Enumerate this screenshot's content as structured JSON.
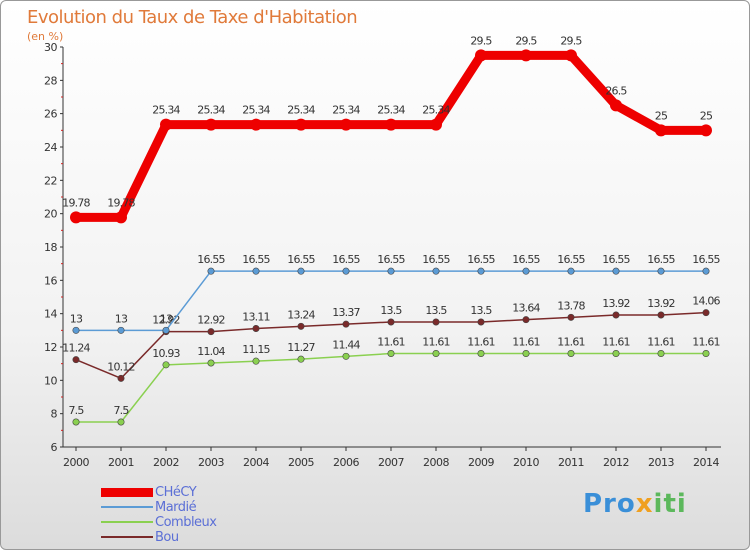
{
  "title": "Evolution du Taux de Taxe d'Habitation",
  "unit": "(en %)",
  "logo": {
    "text": "Proxiti"
  },
  "chart_data": {
    "type": "line",
    "title": "Evolution du Taux de Taxe d'Habitation",
    "ylabel": "(en %)",
    "xlabel": "",
    "ylim": [
      6,
      30
    ],
    "yticks": [
      6,
      8,
      10,
      12,
      14,
      16,
      18,
      20,
      22,
      24,
      26,
      28,
      30
    ],
    "x": [
      "2000",
      "2001",
      "2002",
      "2003",
      "2004",
      "2005",
      "2006",
      "2007",
      "2008",
      "2009",
      "2010",
      "2011",
      "2012",
      "2013",
      "2014"
    ],
    "series": [
      {
        "name": "CHéCY",
        "color": "#ee0000",
        "values": [
          19.78,
          19.78,
          25.34,
          25.34,
          25.34,
          25.34,
          25.34,
          25.34,
          25.34,
          29.5,
          29.5,
          29.5,
          26.5,
          25,
          25
        ],
        "labels": [
          "19.78",
          "19.78",
          "25.34",
          "25.34",
          "25.34",
          "25.34",
          "25.34",
          "25.34",
          "25.34",
          "29.5",
          "29.5",
          "29.5",
          "26.5",
          "25",
          "25"
        ]
      },
      {
        "name": "Mardié",
        "color": "#5b9bd5",
        "values": [
          13,
          13,
          13,
          16.55,
          16.55,
          16.55,
          16.55,
          16.55,
          16.55,
          16.55,
          16.55,
          16.55,
          16.55,
          16.55,
          16.55
        ],
        "labels": [
          "13",
          "13",
          "13",
          "16.55",
          "16.55",
          "16.55",
          "16.55",
          "16.55",
          "16.55",
          "16.55",
          "16.55",
          "16.55",
          "16.55",
          "16.55",
          "16.55"
        ]
      },
      {
        "name": "Combleux",
        "color": "#8ad050",
        "values": [
          7.5,
          7.5,
          10.93,
          11.04,
          11.15,
          11.27,
          11.44,
          11.61,
          11.61,
          11.61,
          11.61,
          11.61,
          11.61,
          11.61,
          11.61
        ],
        "labels": [
          "7.5",
          "7.5",
          "10.93",
          "11.04",
          "11.15",
          "11.27",
          "11.44",
          "11.61",
          "11.61",
          "11.61",
          "11.61",
          "11.61",
          "11.61",
          "11.61",
          "11.61"
        ]
      },
      {
        "name": "Bou",
        "color": "#7a2a2a",
        "values": [
          11.24,
          10.12,
          12.92,
          12.92,
          13.11,
          13.24,
          13.37,
          13.5,
          13.5,
          13.5,
          13.64,
          13.78,
          13.92,
          13.92,
          14.06
        ],
        "labels": [
          "11.24",
          "10.12",
          "12.92",
          "12.92",
          "13.11",
          "13.24",
          "13.37",
          "13.5",
          "13.5",
          "13.5",
          "13.64",
          "13.78",
          "13.92",
          "13.92",
          "14.06"
        ]
      }
    ],
    "legend": "bottom-left"
  }
}
